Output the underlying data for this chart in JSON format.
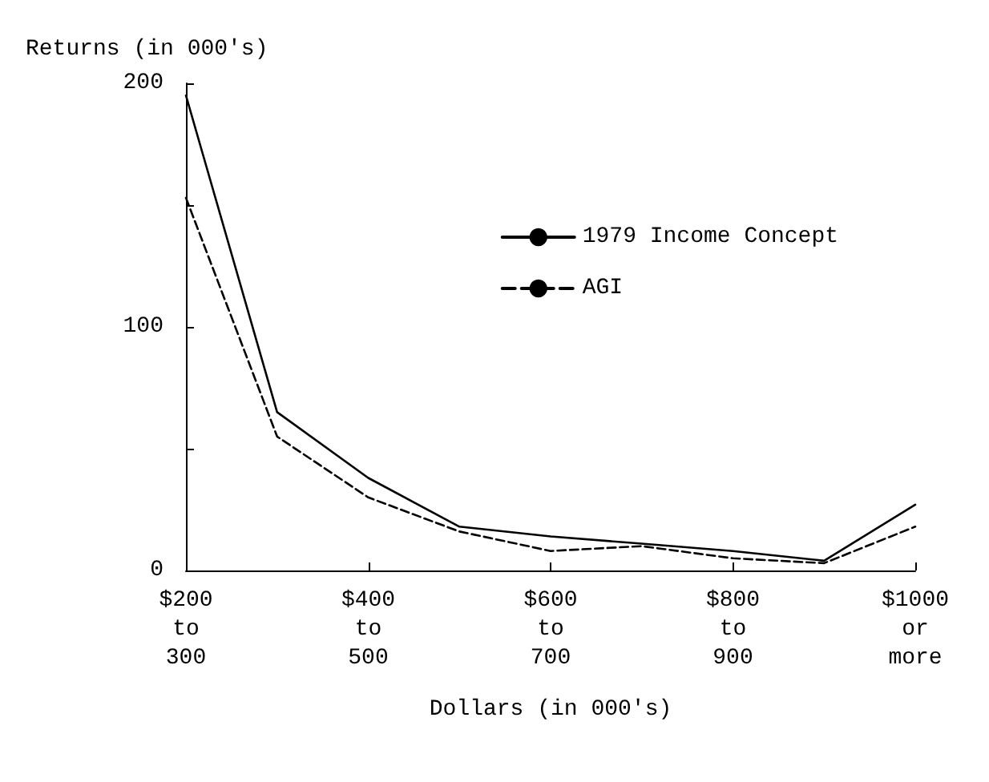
{
  "chart_data": {
    "type": "line",
    "ylabel": "Returns (in 000's)",
    "xlabel": "Dollars (in 000's)",
    "categories": [
      "$200\nto\n300",
      null,
      "$400\nto\n500",
      null,
      "$600\nto\n700",
      null,
      "$800\nto\n900",
      null,
      "$1000\nor\nmore"
    ],
    "series": [
      {
        "name": "1979 Income Concept",
        "color": "#000000",
        "line_style": "solid",
        "values": [
          195,
          65,
          38,
          18,
          14,
          11,
          8,
          4,
          27
        ]
      },
      {
        "name": "AGI",
        "color": "#000000",
        "line_style": "dashed",
        "values": [
          153,
          55,
          30,
          16,
          8,
          10,
          5,
          3,
          18
        ]
      }
    ],
    "ylim": [
      0,
      200
    ],
    "yticks": [
      0,
      {
        "value": 50,
        "label": null
      },
      100,
      {
        "value": 150,
        "label": null
      },
      200
    ],
    "grid": false,
    "legend": "top right",
    "marker": "none"
  }
}
